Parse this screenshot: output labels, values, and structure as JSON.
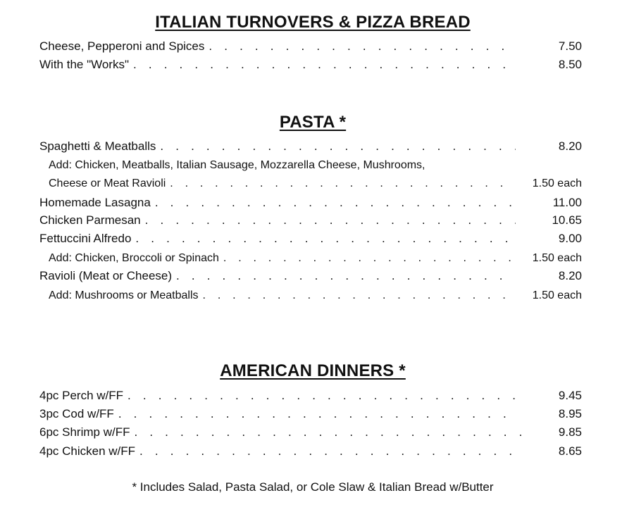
{
  "sections": [
    {
      "title": "ITALIAN TURNOVERS & PIZZA BREAD",
      "items": [
        {
          "name": "Cheese, Pepperoni and Spices",
          "price": "7.50"
        },
        {
          "name": "With the \"Works\"",
          "price": "8.50"
        }
      ]
    },
    {
      "title": "PASTA *",
      "items": [
        {
          "name": "Spaghetti & Meatballs",
          "price": "8.20"
        },
        {
          "name": "Add: Chicken, Meatballs, Italian Sausage, Mozzarella Cheese, Mushrooms,"
        },
        {
          "name": "Cheese or Meat Ravioli",
          "price": "1.50 each"
        },
        {
          "name": "Homemade Lasagna",
          "price": "11.00"
        },
        {
          "name": "Chicken Parmesan",
          "price": "10.65"
        },
        {
          "name": "Fettuccini Alfredo",
          "price": "9.00"
        },
        {
          "name": "Add: Chicken, Broccoli or Spinach",
          "price": "1.50 each"
        },
        {
          "name": "Ravioli (Meat or Cheese)",
          "price": "8.20"
        },
        {
          "name": "Add: Mushrooms or Meatballs",
          "price": "1.50 each"
        }
      ]
    },
    {
      "title": "AMERICAN DINNERS *",
      "items": [
        {
          "name": "4pc Perch w/FF",
          "price": "9.45"
        },
        {
          "name": "3pc Cod w/FF",
          "price": "8.95"
        },
        {
          "name": "6pc Shrimp w/FF",
          "price": "9.85"
        },
        {
          "name": "4pc Chicken w/FF",
          "price": "8.65"
        }
      ]
    }
  ],
  "footnote": "* Includes Salad, Pasta Salad, or Cole Slaw & Italian Bread w/Butter"
}
